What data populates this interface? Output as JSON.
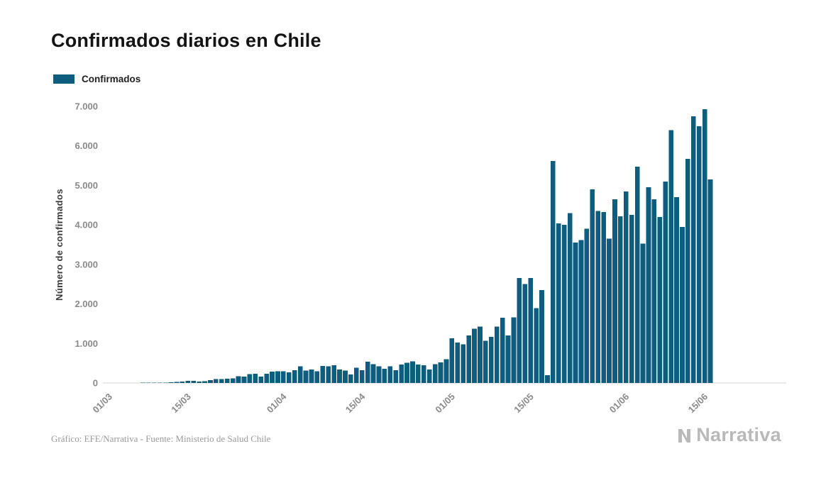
{
  "title": "Confirmados diarios en Chile",
  "legend": {
    "label": "Confirmados"
  },
  "footer": {
    "credit": "Gráfico: EFE/Narrativa - Fuente: Ministerio de Salud Chile",
    "brand": "Narrativa"
  },
  "chart_data": {
    "type": "bar",
    "title": "Confirmados diarios en Chile",
    "series_name": "Confirmados",
    "xlabel": "",
    "ylabel": "Número de confirmados",
    "ylim": [
      0,
      7000
    ],
    "bar_color": "#0e5c7e",
    "grid": "off",
    "legend_position": "top-left",
    "y_ticks": [
      {
        "value": 0,
        "label": "0"
      },
      {
        "value": 1000,
        "label": "1.000"
      },
      {
        "value": 2000,
        "label": "2.000"
      },
      {
        "value": 3000,
        "label": "3.000"
      },
      {
        "value": 4000,
        "label": "4.000"
      },
      {
        "value": 5000,
        "label": "5.000"
      },
      {
        "value": 6000,
        "label": "6.000"
      },
      {
        "value": 7000,
        "label": "7.000"
      }
    ],
    "x_ticks": [
      {
        "index": 0,
        "label": "01/03"
      },
      {
        "index": 14,
        "label": "15/03"
      },
      {
        "index": 31,
        "label": "01/04"
      },
      {
        "index": 45,
        "label": "15/04"
      },
      {
        "index": 61,
        "label": "01/05"
      },
      {
        "index": 75,
        "label": "15/05"
      },
      {
        "index": 92,
        "label": "01/06"
      },
      {
        "index": 106,
        "label": "15/06"
      }
    ],
    "dates": [
      "01/03",
      "02/03",
      "03/03",
      "04/03",
      "05/03",
      "06/03",
      "07/03",
      "08/03",
      "09/03",
      "10/03",
      "11/03",
      "12/03",
      "13/03",
      "14/03",
      "15/03",
      "16/03",
      "17/03",
      "18/03",
      "19/03",
      "20/03",
      "21/03",
      "22/03",
      "23/03",
      "24/03",
      "25/03",
      "26/03",
      "27/03",
      "28/03",
      "29/03",
      "30/03",
      "31/03",
      "01/04",
      "02/04",
      "03/04",
      "04/04",
      "05/04",
      "06/04",
      "07/04",
      "08/04",
      "09/04",
      "10/04",
      "11/04",
      "12/04",
      "13/04",
      "14/04",
      "15/04",
      "16/04",
      "17/04",
      "18/04",
      "19/04",
      "20/04",
      "21/04",
      "22/04",
      "23/04",
      "24/04",
      "25/04",
      "26/04",
      "27/04",
      "28/04",
      "29/04",
      "30/04",
      "01/05",
      "02/05",
      "03/05",
      "04/05",
      "05/05",
      "06/05",
      "07/05",
      "08/05",
      "09/05",
      "10/05",
      "11/05",
      "12/05",
      "13/05",
      "14/05",
      "15/05",
      "16/05",
      "17/05",
      "18/05",
      "19/05",
      "20/05",
      "21/05",
      "22/05",
      "23/05",
      "24/05",
      "25/05",
      "26/05",
      "27/05",
      "28/05",
      "29/05",
      "30/05",
      "31/05",
      "01/06",
      "02/06",
      "03/06",
      "04/06",
      "05/06",
      "06/06",
      "07/06",
      "08/06",
      "09/06",
      "10/06",
      "11/06",
      "12/06",
      "13/06",
      "14/06",
      "15/06",
      "16/06"
    ],
    "values": [
      2,
      2,
      3,
      3,
      4,
      4,
      5,
      6,
      8,
      10,
      12,
      15,
      25,
      35,
      50,
      55,
      40,
      45,
      75,
      95,
      100,
      105,
      115,
      170,
      160,
      220,
      230,
      160,
      230,
      290,
      295,
      300,
      270,
      320,
      420,
      310,
      345,
      300,
      430,
      425,
      445,
      345,
      310,
      215,
      390,
      325,
      535,
      480,
      420,
      360,
      420,
      325,
      465,
      515,
      550,
      470,
      450,
      340,
      480,
      520,
      600,
      1130,
      1020,
      980,
      1200,
      1370,
      1430,
      1070,
      1170,
      1430,
      1650,
      1200,
      1660,
      2660,
      2500,
      2660,
      1890,
      2350,
      200,
      5620,
      4040,
      4000,
      4300,
      3550,
      3620,
      3900,
      4900,
      4350,
      4330,
      3650,
      4650,
      4220,
      4850,
      4250,
      5470,
      3530,
      4950,
      4650,
      4200,
      5100,
      6400,
      4700,
      3950,
      5670,
      6750,
      6500,
      6930,
      5150
    ]
  }
}
